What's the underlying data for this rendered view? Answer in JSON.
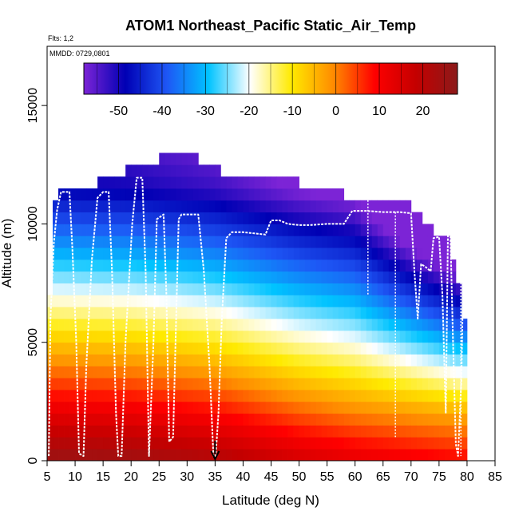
{
  "chart_data": {
    "type": "heatmap",
    "title": "ATOM1 Northeast_Pacific Static_Air_Temp",
    "flights_note": "Flts: 1,2",
    "dates_note": "MMDD: 0729,0801",
    "xlabel": "Latitude (deg N)",
    "ylabel": "Altitude (m)",
    "xlim": [
      5,
      85
    ],
    "ylim": [
      0,
      17500
    ],
    "x_ticks": [
      "5",
      "10",
      "15",
      "20",
      "25",
      "30",
      "35",
      "40",
      "45",
      "50",
      "55",
      "60",
      "65",
      "70",
      "75",
      "80",
      "85"
    ],
    "x_tick_values": [
      5,
      10,
      15,
      20,
      25,
      30,
      35,
      40,
      45,
      50,
      55,
      60,
      65,
      70,
      75,
      80,
      85
    ],
    "y_ticks": [
      "0",
      "5000",
      "10000",
      "15000"
    ],
    "y_tick_values": [
      0,
      5000,
      10000,
      15000
    ],
    "colorbar": {
      "range": [
        -58,
        28
      ],
      "ticks": [
        "-50",
        "-40",
        "-30",
        "-20",
        "-10",
        "0",
        "10",
        "20"
      ],
      "tick_values": [
        -50,
        -40,
        -30,
        -20,
        -10,
        0,
        10,
        20
      ],
      "colors": [
        "#7c24d6",
        "#0000b4",
        "#1e56f5",
        "#00c3ff",
        "#ffffff",
        "#ffea00",
        "#ff8c00",
        "#ff0000",
        "#c40000",
        "#8b1a1a"
      ]
    },
    "grid_cell": {
      "dlat": 1,
      "dalt": 500
    },
    "coverage": [
      {
        "lat": [
          5,
          6
        ],
        "top": 7000
      },
      {
        "lat": [
          6,
          7
        ],
        "top": 11000
      },
      {
        "lat": [
          7,
          11
        ],
        "top": 11500
      },
      {
        "lat": [
          11,
          14
        ],
        "top": 11500
      },
      {
        "lat": [
          14,
          19
        ],
        "top": 12000
      },
      {
        "lat": [
          19,
          25
        ],
        "top": 12500
      },
      {
        "lat": [
          25,
          32
        ],
        "top": 13000
      },
      {
        "lat": [
          32,
          36
        ],
        "top": 12500
      },
      {
        "lat": [
          36,
          40
        ],
        "top": 12000
      },
      {
        "lat": [
          40,
          50
        ],
        "top": 12000
      },
      {
        "lat": [
          50,
          55
        ],
        "top": 11500
      },
      {
        "lat": [
          55,
          58
        ],
        "top": 11500
      },
      {
        "lat": [
          58,
          62
        ],
        "top": 11000
      },
      {
        "lat": [
          62,
          70
        ],
        "top": 11000
      },
      {
        "lat": [
          70,
          72
        ],
        "top": 10500
      },
      {
        "lat": [
          72,
          74
        ],
        "top": 10000
      },
      {
        "lat": [
          74,
          77
        ],
        "top": 9500
      },
      {
        "lat": [
          77,
          78
        ],
        "top": 8500
      },
      {
        "lat": [
          78,
          79
        ],
        "top": 7500
      },
      {
        "lat": [
          79,
          80
        ],
        "top": 6000
      }
    ],
    "temperature_model": {
      "surface_temp_by_lat": [
        [
          5,
          26
        ],
        [
          20,
          25
        ],
        [
          30,
          23
        ],
        [
          35,
          22
        ],
        [
          40,
          20
        ],
        [
          50,
          16
        ],
        [
          60,
          13
        ],
        [
          70,
          11
        ],
        [
          80,
          9
        ]
      ],
      "lapse_rate_c_per_km": 6.5,
      "tropopause_km": 11.5
    },
    "flight_track": {
      "points": [
        [
          5.3,
          200
        ],
        [
          5.6,
          6000
        ],
        [
          6.2,
          9200
        ],
        [
          6.8,
          10600
        ],
        [
          7.5,
          11350
        ],
        [
          9.0,
          11350
        ],
        [
          9.5,
          9000
        ],
        [
          10.2,
          5000
        ],
        [
          10.7,
          300
        ],
        [
          11.5,
          200
        ],
        [
          12.0,
          4000
        ],
        [
          13.0,
          8500
        ],
        [
          14.0,
          11100
        ],
        [
          15.0,
          11350
        ],
        [
          16.0,
          11350
        ],
        [
          16.6,
          8000
        ],
        [
          17.3,
          2000
        ],
        [
          17.7,
          200
        ],
        [
          18.3,
          200
        ],
        [
          19.0,
          5000
        ],
        [
          20.2,
          10000
        ],
        [
          21.0,
          11950
        ],
        [
          22.0,
          11950
        ],
        [
          22.6,
          8000
        ],
        [
          23.2,
          200
        ],
        [
          24.0,
          5000
        ],
        [
          24.6,
          10200
        ],
        [
          25.8,
          10400
        ],
        [
          26.3,
          7000
        ],
        [
          26.8,
          800
        ],
        [
          27.5,
          1000
        ],
        [
          28.5,
          10200
        ],
        [
          29.0,
          10400
        ],
        [
          31.0,
          10400
        ],
        [
          32.0,
          10400
        ],
        [
          33.0,
          8000
        ],
        [
          34.0,
          4000
        ],
        [
          34.7,
          200
        ],
        [
          35.1,
          200
        ],
        [
          35.6,
          2000
        ],
        [
          36.2,
          6000
        ],
        [
          37.0,
          9400
        ],
        [
          38.0,
          9650
        ],
        [
          40.0,
          9650
        ],
        [
          42.0,
          9600
        ],
        [
          44.0,
          9550
        ],
        [
          45.0,
          10150
        ],
        [
          46.5,
          10150
        ],
        [
          48.0,
          10000
        ],
        [
          50.0,
          9950
        ],
        [
          52.0,
          9950
        ],
        [
          55.0,
          10000
        ],
        [
          58.0,
          10000
        ],
        [
          59.5,
          10550
        ],
        [
          62.0,
          10550
        ],
        [
          65.0,
          10500
        ],
        [
          68.0,
          10500
        ],
        [
          70.0,
          10450
        ],
        [
          70.6,
          8000
        ],
        [
          71.2,
          6000
        ],
        [
          71.8,
          8300
        ],
        [
          72.5,
          8200
        ],
        [
          73.5,
          8000
        ],
        [
          74.0,
          9400
        ],
        [
          75.0,
          9450
        ],
        [
          75.6,
          7000
        ],
        [
          76.2,
          2000
        ],
        [
          76.6,
          9800
        ],
        [
          77.0,
          9800
        ],
        [
          77.5,
          5000
        ],
        [
          78.0,
          700
        ],
        [
          78.4,
          200
        ],
        [
          79.0,
          3500
        ],
        [
          79.4,
          9000
        ],
        [
          79.8,
          9300
        ]
      ],
      "descent_profiles": [
        {
          "lat": 67.2,
          "alt": [
            10500,
            1000
          ]
        },
        {
          "lat": 62.3,
          "alt": [
            11000,
            7000
          ]
        },
        {
          "lat": 78.9,
          "alt": [
            9000,
            200
          ]
        }
      ]
    },
    "marker": {
      "lat": 35,
      "alt_top": 700,
      "alt_bottom": 0,
      "label": "arrow"
    }
  }
}
